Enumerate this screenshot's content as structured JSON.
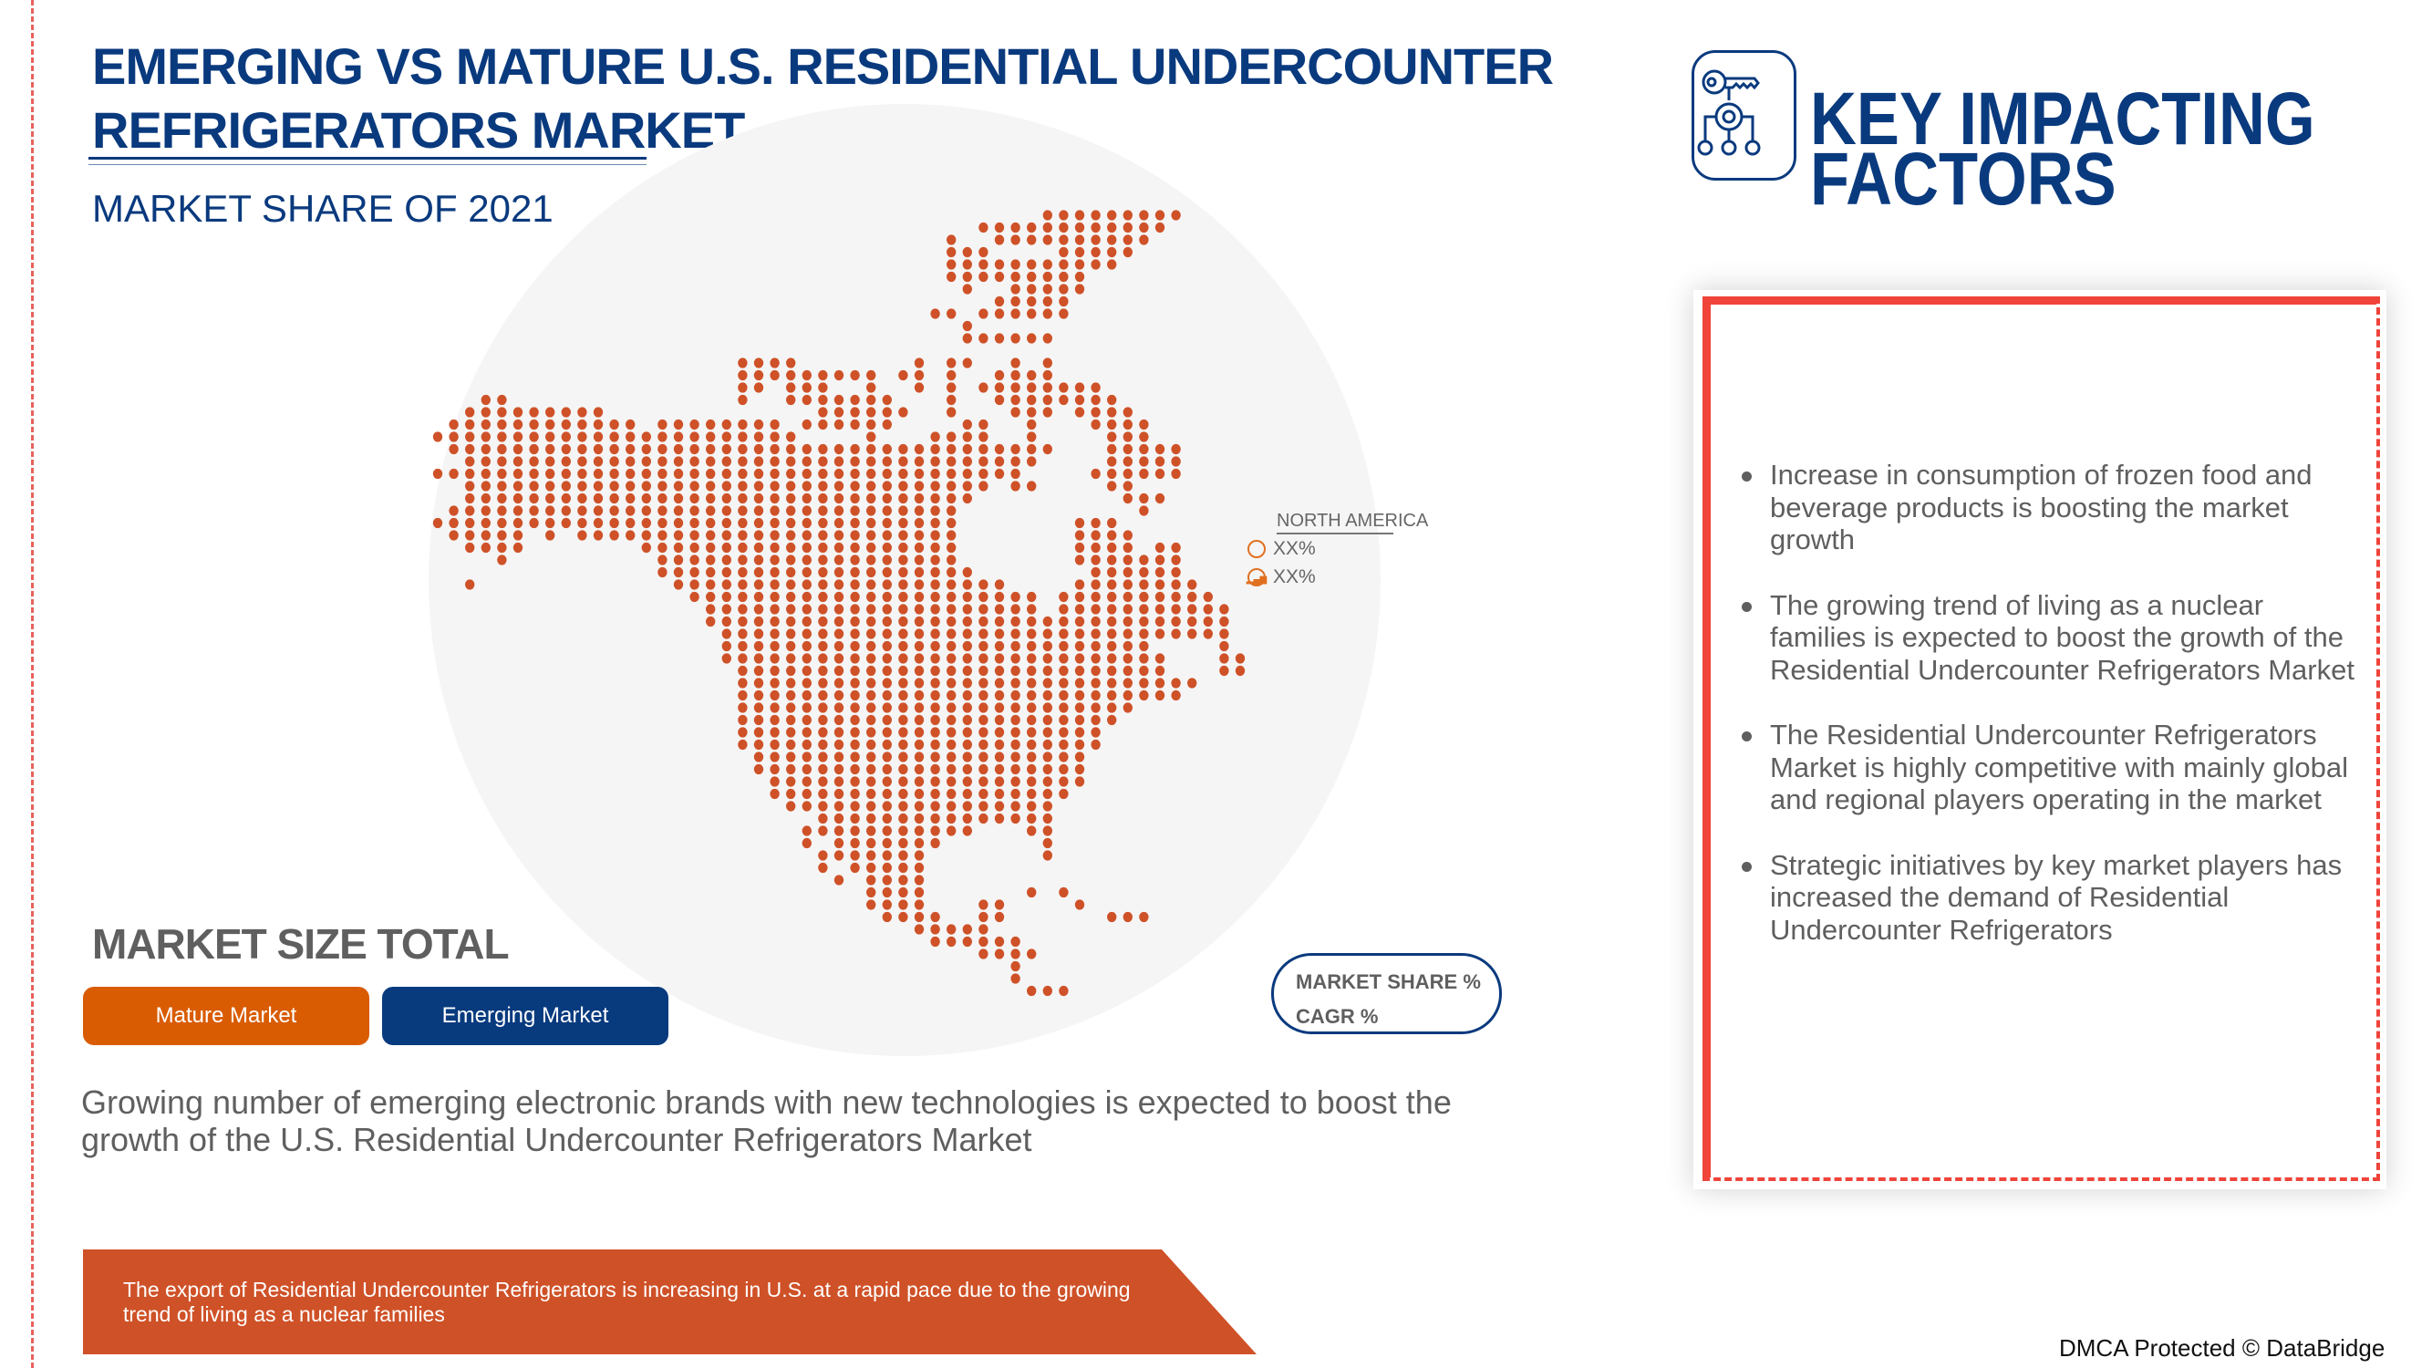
{
  "header": {
    "title_line1": "EMERGING VS MATURE U.S. RESIDENTIAL UNDERCOUNTER",
    "title_line2": "REFRIGERATORS MARKET",
    "subtitle": "MARKET SHARE OF 2021"
  },
  "map": {
    "region_label": "NORTH AMERICA",
    "market_share_value": "XX%",
    "cagr_value": "XX%",
    "market_share_icon": "pie-chart-icon",
    "cagr_icon": "bar-chart-growth-icon"
  },
  "market_size": {
    "title": "MARKET SIZE TOTAL",
    "mature_label": "Mature Market",
    "emerging_label": "Emerging Market"
  },
  "legend_pill": {
    "line1": "MARKET SHARE %",
    "line2": "CAGR %"
  },
  "description": "Growing number of emerging electronic brands with new technologies is expected to boost the growth of the U.S. Residential Undercounter Refrigerators Market",
  "banner": "The export of Residential Undercounter Refrigerators is increasing in U.S. at a rapid pace due to the growing trend of living as a nuclear families",
  "key_factors": {
    "icon": "key-gear-network-icon",
    "title_line1": "KEY IMPACTING",
    "title_line2": "FACTORS",
    "items": [
      "Increase in consumption of frozen food and beverage products is boosting the market growth",
      "The growing trend of living as a nuclear families is expected to boost the growth of the Residential Undercounter Refrigerators Market",
      "The Residential Undercounter Refrigerators Market is highly competitive with mainly global and regional players operating in the market",
      "Strategic initiatives by key market players has increased the demand of Residential Undercounter Refrigerators"
    ]
  },
  "footer": "DMCA Protected © DataBridge",
  "colors": {
    "navy": "#0a3a7e",
    "orange": "#d95c02",
    "map_dots": "#cf5128",
    "banner": "#cf5127",
    "frame_red": "#f0433a",
    "text_grey": "#5f5f5f"
  }
}
